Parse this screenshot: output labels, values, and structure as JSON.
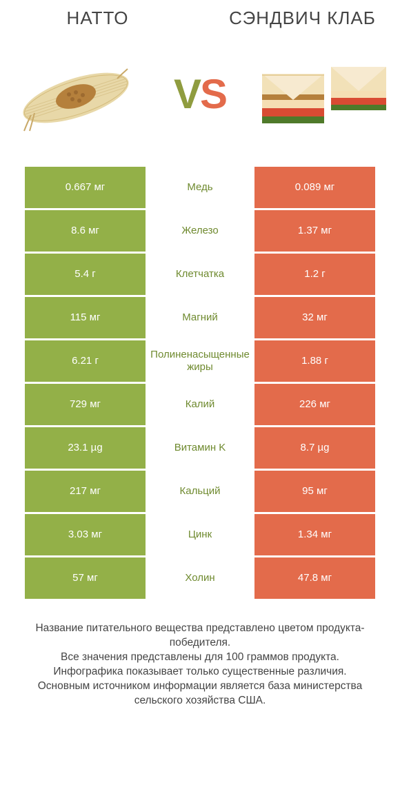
{
  "colors": {
    "green": "#93b048",
    "orange": "#e36b4b",
    "text_green": "#6f8a2f",
    "text_orange": "#d2411b",
    "background": "#ffffff"
  },
  "header": {
    "left_title": "НАТТО",
    "right_title": "СЭНДВИЧ КЛАБ",
    "vs_v": "V",
    "vs_s": "S"
  },
  "rows": [
    {
      "left": "0.667 мг",
      "mid": "Медь",
      "right": "0.089 мг",
      "winner": "left"
    },
    {
      "left": "8.6 мг",
      "mid": "Железо",
      "right": "1.37 мг",
      "winner": "left"
    },
    {
      "left": "5.4 г",
      "mid": "Клетчатка",
      "right": "1.2 г",
      "winner": "left"
    },
    {
      "left": "115 мг",
      "mid": "Магний",
      "right": "32 мг",
      "winner": "left"
    },
    {
      "left": "6.21 г",
      "mid": "Полиненасыщенные жиры",
      "right": "1.88 г",
      "winner": "left"
    },
    {
      "left": "729 мг",
      "mid": "Калий",
      "right": "226 мг",
      "winner": "left"
    },
    {
      "left": "23.1 µg",
      "mid": "Витамин K",
      "right": "8.7 µg",
      "winner": "left"
    },
    {
      "left": "217 мг",
      "mid": "Кальций",
      "right": "95 мг",
      "winner": "left"
    },
    {
      "left": "3.03 мг",
      "mid": "Цинк",
      "right": "1.34 мг",
      "winner": "left"
    },
    {
      "left": "57 мг",
      "mid": "Холин",
      "right": "47.8 мг",
      "winner": "left"
    }
  ],
  "footer": {
    "line1": "Название питательного вещества представлено цветом продукта-победителя.",
    "line2": "Все значения представлены для 100 граммов продукта.",
    "line3": "Инфографика показывает только существенные различия.",
    "line4": "Основным источником информации является база министерства сельского хозяйства США."
  }
}
